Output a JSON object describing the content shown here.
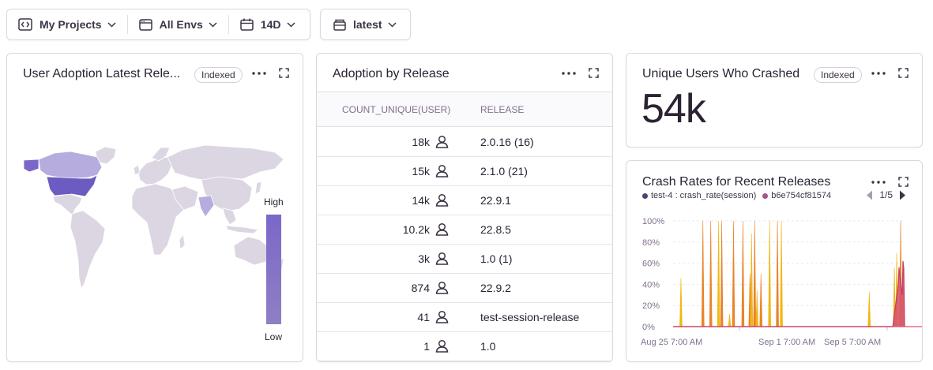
{
  "filters": {
    "project": "My Projects",
    "environment": "All Envs",
    "date_range": "14D",
    "release": "latest"
  },
  "adoption_map": {
    "title": "User Adoption Latest Rele...",
    "badge": "Indexed",
    "legend_high": "High",
    "legend_low": "Low",
    "colors": {
      "high": "#7b67c9",
      "low": "#8e80c4",
      "base": "#dcd6e3"
    }
  },
  "adoption_table": {
    "title": "Adoption by Release",
    "columns": [
      "COUNT_UNIQUE(USER)",
      "RELEASE"
    ],
    "rows": [
      {
        "count": "18k",
        "release": "2.0.16 (16)"
      },
      {
        "count": "15k",
        "release": "2.1.0 (21)"
      },
      {
        "count": "14k",
        "release": "22.9.1"
      },
      {
        "count": "10.2k",
        "release": "22.8.5"
      },
      {
        "count": "3k",
        "release": "1.0 (1)"
      },
      {
        "count": "874",
        "release": "22.9.2"
      },
      {
        "count": "41",
        "release": "test-session-release"
      },
      {
        "count": "1",
        "release": "1.0"
      }
    ]
  },
  "crashed_users": {
    "title": "Unique Users Who Crashed",
    "badge": "Indexed",
    "value": "54k"
  },
  "crash_rates": {
    "title": "Crash Rates for Recent Releases",
    "pager": "1/5",
    "chart_data": {
      "type": "line",
      "yticks": [
        "100%",
        "80%",
        "60%",
        "40%",
        "20%",
        "0%"
      ],
      "ylim": [
        0,
        100
      ],
      "xticks": [
        "Aug 25 7:00 AM",
        "Sep 1 7:00 AM",
        "Sep 5 7:00 AM"
      ],
      "series": [
        {
          "name": "test-4 : crash_rate(session)",
          "color": "#444674",
          "x": [
            0,
            10,
            38,
            48,
            58,
            62,
            72,
            77,
            89,
            98,
            100,
            104,
            107,
            112,
            123,
            133,
            138,
            150,
            160,
            170,
            185,
            198,
            210,
            225,
            240,
            255,
            265,
            270,
            283,
            285,
            290,
            295,
            300,
            305,
            310,
            315,
            320,
            325,
            330,
            335,
            340,
            345,
            350,
            355,
            360,
            365,
            370,
            375
          ],
          "values": [
            0,
            0,
            0,
            0,
            0,
            0,
            0,
            0,
            0,
            0,
            0,
            0,
            0,
            0,
            0,
            0,
            0,
            0,
            0,
            0,
            0,
            0,
            0,
            0,
            0,
            0,
            0,
            0,
            0,
            0,
            0,
            0,
            0,
            0,
            0,
            0,
            0,
            0,
            0,
            0,
            0,
            0,
            0,
            0,
            0,
            0,
            0,
            0
          ]
        },
        {
          "name": "b6e754cf81574",
          "color": "#a35488",
          "x": [
            0,
            270,
            280,
            287,
            288,
            290,
            292,
            293,
            294,
            295
          ],
          "values": [
            0,
            0,
            0,
            40,
            56,
            41,
            30,
            62,
            55,
            0
          ]
        }
      ]
    }
  }
}
